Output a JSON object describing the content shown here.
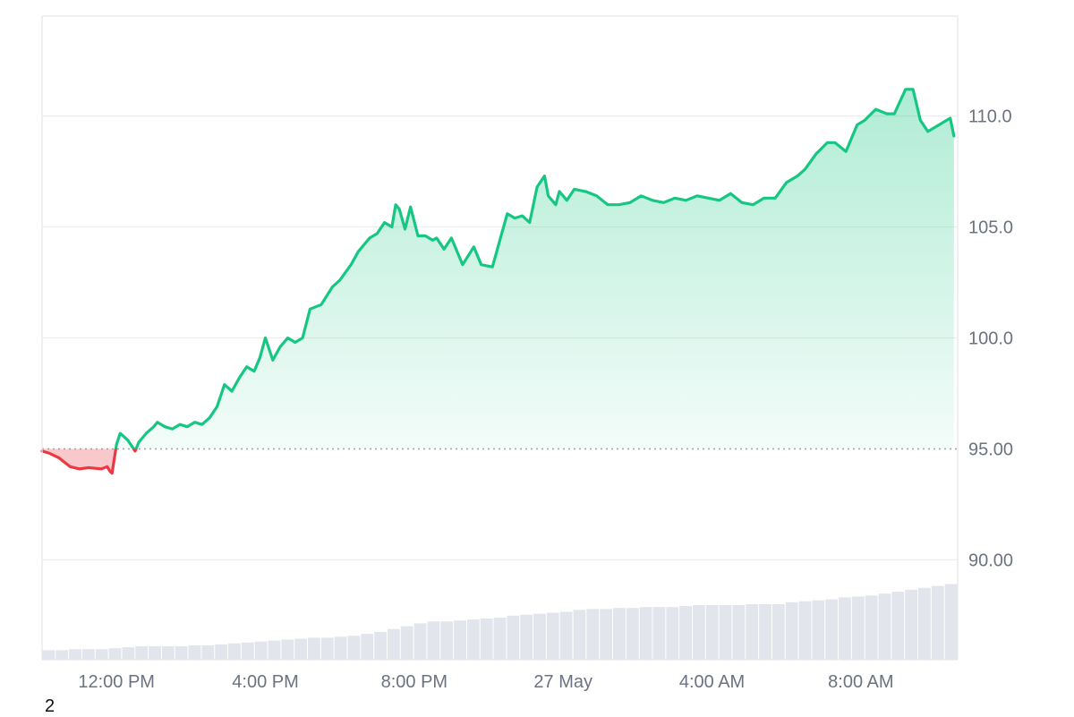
{
  "footer": {
    "page_number": "2"
  },
  "colors": {
    "up": "#16c784",
    "down": "#ea3943",
    "grid": "#eeeeee",
    "frame": "#e5e7eb",
    "baseline": "#9ca3af",
    "volume": "#e2e6ec",
    "label": "#6b7280"
  },
  "chart_data": {
    "type": "area",
    "baseline": 95.0,
    "baseline_label": "95.00",
    "x_range_hours": [
      0,
      24.6
    ],
    "ylim": [
      85.5,
      114.5
    ],
    "y_ticks": [
      {
        "value": 110,
        "label": "110.0"
      },
      {
        "value": 105,
        "label": "105.0"
      },
      {
        "value": 100,
        "label": "100.0"
      },
      {
        "value": 95,
        "label": "95.00"
      },
      {
        "value": 90,
        "label": "90.00"
      }
    ],
    "x_ticks": [
      {
        "value": 2,
        "label": "12:00 PM"
      },
      {
        "value": 6,
        "label": "4:00 PM"
      },
      {
        "value": 10,
        "label": "8:00 PM"
      },
      {
        "value": 14,
        "label": "27 May"
      },
      {
        "value": 18,
        "label": "4:00 AM"
      },
      {
        "value": 22,
        "label": "8:00 AM"
      }
    ],
    "series": [
      {
        "x": [
          0,
          0.2,
          0.45,
          0.75,
          1.0,
          1.25,
          1.6,
          1.75,
          1.82,
          1.88,
          2.0,
          2.1,
          2.3,
          2.5,
          2.6,
          2.8,
          3.0,
          3.1,
          3.3,
          3.5,
          3.7,
          3.9,
          4.1,
          4.3,
          4.5,
          4.7,
          4.9,
          5.1,
          5.3,
          5.5,
          5.7,
          5.85,
          6.0,
          6.2,
          6.4,
          6.6,
          6.8,
          7.0,
          7.2,
          7.5,
          7.8,
          8.0,
          8.3,
          8.5,
          8.8,
          9.0,
          9.2,
          9.4,
          9.5,
          9.6,
          9.75,
          9.9,
          10.1,
          10.3,
          10.5,
          10.6,
          10.8,
          11.0,
          11.3,
          11.6,
          11.8,
          12.1,
          12.3,
          12.5,
          12.7,
          12.9,
          13.1,
          13.3,
          13.5,
          13.6,
          13.8,
          13.9,
          14.1,
          14.3,
          14.6,
          14.9,
          15.2,
          15.5,
          15.8,
          16.1,
          16.4,
          16.7,
          17.0,
          17.3,
          17.6,
          17.9,
          18.2,
          18.5,
          18.8,
          19.1,
          19.4,
          19.7,
          20.0,
          20.3,
          20.5,
          20.8,
          21.1,
          21.3,
          21.6,
          21.9,
          22.1,
          22.4,
          22.7,
          22.9,
          23.2,
          23.4,
          23.6,
          23.8,
          24.1,
          24.4,
          24.5
        ],
        "y": [
          94.9,
          94.8,
          94.6,
          94.2,
          94.1,
          94.15,
          94.1,
          94.2,
          94.0,
          93.9,
          95.2,
          95.7,
          95.4,
          94.9,
          95.3,
          95.7,
          96.0,
          96.2,
          96.0,
          95.9,
          96.1,
          96.0,
          96.2,
          96.1,
          96.4,
          96.9,
          97.9,
          97.6,
          98.2,
          98.7,
          98.5,
          99.1,
          100.0,
          99.0,
          99.6,
          100.0,
          99.8,
          100.0,
          101.3,
          101.5,
          102.3,
          102.6,
          103.3,
          103.9,
          104.5,
          104.7,
          105.2,
          105.0,
          106.0,
          105.8,
          104.9,
          105.9,
          104.6,
          104.6,
          104.4,
          104.5,
          104.0,
          104.5,
          103.3,
          104.1,
          103.3,
          103.2,
          104.4,
          105.6,
          105.4,
          105.5,
          105.2,
          106.8,
          107.3,
          106.4,
          106.0,
          106.6,
          106.2,
          106.7,
          106.6,
          106.4,
          106.0,
          106.0,
          106.1,
          106.4,
          106.2,
          106.1,
          106.3,
          106.2,
          106.4,
          106.3,
          106.2,
          106.5,
          106.1,
          106.0,
          106.3,
          106.3,
          107.0,
          107.3,
          107.6,
          108.3,
          108.8,
          108.8,
          108.4,
          109.6,
          109.8,
          110.3,
          110.1,
          110.1,
          111.2,
          111.2,
          109.8,
          109.3,
          109.6,
          109.9,
          109.1
        ]
      }
    ],
    "volume_relative": [
      0.1,
      0.1,
      0.11,
      0.11,
      0.11,
      0.12,
      0.13,
      0.14,
      0.14,
      0.14,
      0.14,
      0.15,
      0.15,
      0.16,
      0.17,
      0.18,
      0.19,
      0.2,
      0.21,
      0.22,
      0.23,
      0.23,
      0.24,
      0.25,
      0.27,
      0.29,
      0.32,
      0.35,
      0.38,
      0.4,
      0.4,
      0.41,
      0.42,
      0.43,
      0.44,
      0.46,
      0.47,
      0.48,
      0.49,
      0.5,
      0.52,
      0.53,
      0.53,
      0.54,
      0.54,
      0.55,
      0.55,
      0.55,
      0.56,
      0.57,
      0.57,
      0.57,
      0.57,
      0.58,
      0.58,
      0.58,
      0.6,
      0.61,
      0.62,
      0.63,
      0.65,
      0.66,
      0.67,
      0.69,
      0.71,
      0.73,
      0.75,
      0.77,
      0.79
    ]
  }
}
